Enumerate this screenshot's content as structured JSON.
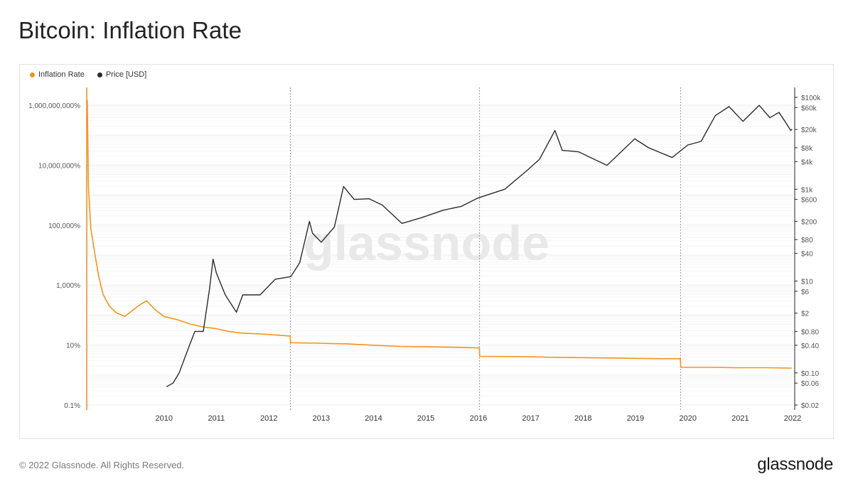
{
  "title": "Bitcoin: Inflation Rate",
  "legend": {
    "inflation_label": "Inflation Rate",
    "price_label": "Price [USD]"
  },
  "colors": {
    "inflation": "#f7931a",
    "price": "#2b2b2b",
    "grid": "#ededed",
    "axis_text": "#555555",
    "halving_line": "#9a9a9a"
  },
  "watermark": "glassnode",
  "footer": {
    "copyright": "© 2022 Glassnode. All Rights Reserved.",
    "brand": "glassnode"
  },
  "chart_data": {
    "type": "line",
    "title": "Bitcoin: Inflation Rate",
    "x_range": [
      "2009-01-03",
      "2022-07-01"
    ],
    "x_ticks": [
      "2010",
      "2011",
      "2012",
      "2013",
      "2014",
      "2015",
      "2016",
      "2017",
      "2018",
      "2019",
      "2020",
      "2021",
      "2022"
    ],
    "left_axis": {
      "scale": "log",
      "range_percent": [
        0.1,
        1000000000
      ],
      "tick_values": [
        0.1,
        10,
        1000,
        100000,
        10000000,
        1000000000
      ],
      "tick_labels": [
        "0.1%",
        "10%",
        "1,000%",
        "100,000%",
        "10,000,000%",
        "1,000,000,000%"
      ]
    },
    "right_axis": {
      "scale": "log",
      "range_usd": [
        0.02,
        100000
      ],
      "tick_values": [
        0.02,
        0.06,
        0.1,
        0.4,
        0.8,
        2,
        6,
        10,
        40,
        80,
        200,
        600,
        1000,
        4000,
        8000,
        20000,
        60000,
        100000
      ],
      "tick_labels": [
        "$0.02",
        "$0.06",
        "$0.10",
        "$0.40",
        "$0.80",
        "$2",
        "$6",
        "$10",
        "$40",
        "$80",
        "$200",
        "$600",
        "$1k",
        "$4k",
        "$8k",
        "$20k",
        "$60k",
        "$100k"
      ]
    },
    "halvings": [
      "2012-11-28",
      "2016-07-09",
      "2020-05-11"
    ],
    "grid": true,
    "legend_position": "top-left",
    "series": [
      {
        "name": "Inflation Rate",
        "axis": "left",
        "points": [
          [
            "2009-01-12",
            1500000000
          ],
          [
            "2009-01-20",
            2000000
          ],
          [
            "2009-02-05",
            80000
          ],
          [
            "2009-03-01",
            15000
          ],
          [
            "2009-04-01",
            2000
          ],
          [
            "2009-05-01",
            500
          ],
          [
            "2009-06-15",
            200
          ],
          [
            "2009-08-01",
            120
          ],
          [
            "2009-10-01",
            90
          ],
          [
            "2010-01-01",
            200
          ],
          [
            "2010-03-01",
            300
          ],
          [
            "2010-05-01",
            150
          ],
          [
            "2010-07-01",
            90
          ],
          [
            "2010-10-01",
            70
          ],
          [
            "2011-01-01",
            50
          ],
          [
            "2011-04-01",
            40
          ],
          [
            "2011-07-01",
            35
          ],
          [
            "2011-10-01",
            28
          ],
          [
            "2012-01-01",
            25
          ],
          [
            "2012-06-01",
            23
          ],
          [
            "2012-11-27",
            20
          ],
          [
            "2012-11-29",
            12
          ],
          [
            "2013-06-01",
            11.5
          ],
          [
            "2014-01-01",
            11
          ],
          [
            "2014-06-01",
            10
          ],
          [
            "2015-01-01",
            9
          ],
          [
            "2015-06-01",
            8.8
          ],
          [
            "2016-01-01",
            8.5
          ],
          [
            "2016-07-08",
            8
          ],
          [
            "2016-07-10",
            4.2
          ],
          [
            "2017-06-01",
            4.1
          ],
          [
            "2018-01-01",
            3.9
          ],
          [
            "2018-06-01",
            3.8
          ],
          [
            "2019-01-01",
            3.7
          ],
          [
            "2019-06-01",
            3.6
          ],
          [
            "2020-01-01",
            3.5
          ],
          [
            "2020-05-10",
            3.5
          ],
          [
            "2020-05-12",
            1.8
          ],
          [
            "2021-01-01",
            1.8
          ],
          [
            "2021-06-01",
            1.75
          ],
          [
            "2022-01-01",
            1.75
          ],
          [
            "2022-06-25",
            1.7
          ]
        ]
      },
      {
        "name": "Price [USD]",
        "axis": "right",
        "points": [
          [
            "2010-07-18",
            0.05
          ],
          [
            "2010-09-01",
            0.06
          ],
          [
            "2010-10-15",
            0.1
          ],
          [
            "2010-12-01",
            0.25
          ],
          [
            "2011-02-01",
            0.8
          ],
          [
            "2011-04-01",
            0.8
          ],
          [
            "2011-05-15",
            7
          ],
          [
            "2011-06-08",
            30
          ],
          [
            "2011-07-01",
            15
          ],
          [
            "2011-09-01",
            5
          ],
          [
            "2011-11-18",
            2.1
          ],
          [
            "2012-01-01",
            5
          ],
          [
            "2012-05-01",
            5
          ],
          [
            "2012-08-15",
            11
          ],
          [
            "2012-12-01",
            12.5
          ],
          [
            "2013-02-01",
            25
          ],
          [
            "2013-04-10",
            200
          ],
          [
            "2013-05-01",
            110
          ],
          [
            "2013-07-01",
            70
          ],
          [
            "2013-10-01",
            150
          ],
          [
            "2013-12-04",
            1150
          ],
          [
            "2014-02-15",
            600
          ],
          [
            "2014-06-01",
            620
          ],
          [
            "2014-09-01",
            450
          ],
          [
            "2015-01-15",
            180
          ],
          [
            "2015-06-01",
            240
          ],
          [
            "2015-11-01",
            350
          ],
          [
            "2016-03-01",
            420
          ],
          [
            "2016-07-01",
            650
          ],
          [
            "2017-01-01",
            1000
          ],
          [
            "2017-06-01",
            2500
          ],
          [
            "2017-09-01",
            4500
          ],
          [
            "2017-12-17",
            19000
          ],
          [
            "2018-02-06",
            7000
          ],
          [
            "2018-06-01",
            6500
          ],
          [
            "2018-12-15",
            3300
          ],
          [
            "2019-06-26",
            12500
          ],
          [
            "2019-10-01",
            8000
          ],
          [
            "2020-03-13",
            4900
          ],
          [
            "2020-07-01",
            9200
          ],
          [
            "2020-10-01",
            11000
          ],
          [
            "2021-01-08",
            40000
          ],
          [
            "2021-04-14",
            63000
          ],
          [
            "2021-07-20",
            30000
          ],
          [
            "2021-11-10",
            67000
          ],
          [
            "2022-01-24",
            36000
          ],
          [
            "2022-03-28",
            47000
          ],
          [
            "2022-05-12",
            29000
          ],
          [
            "2022-06-18",
            19000
          ],
          [
            "2022-06-28",
            20300
          ]
        ]
      }
    ]
  }
}
